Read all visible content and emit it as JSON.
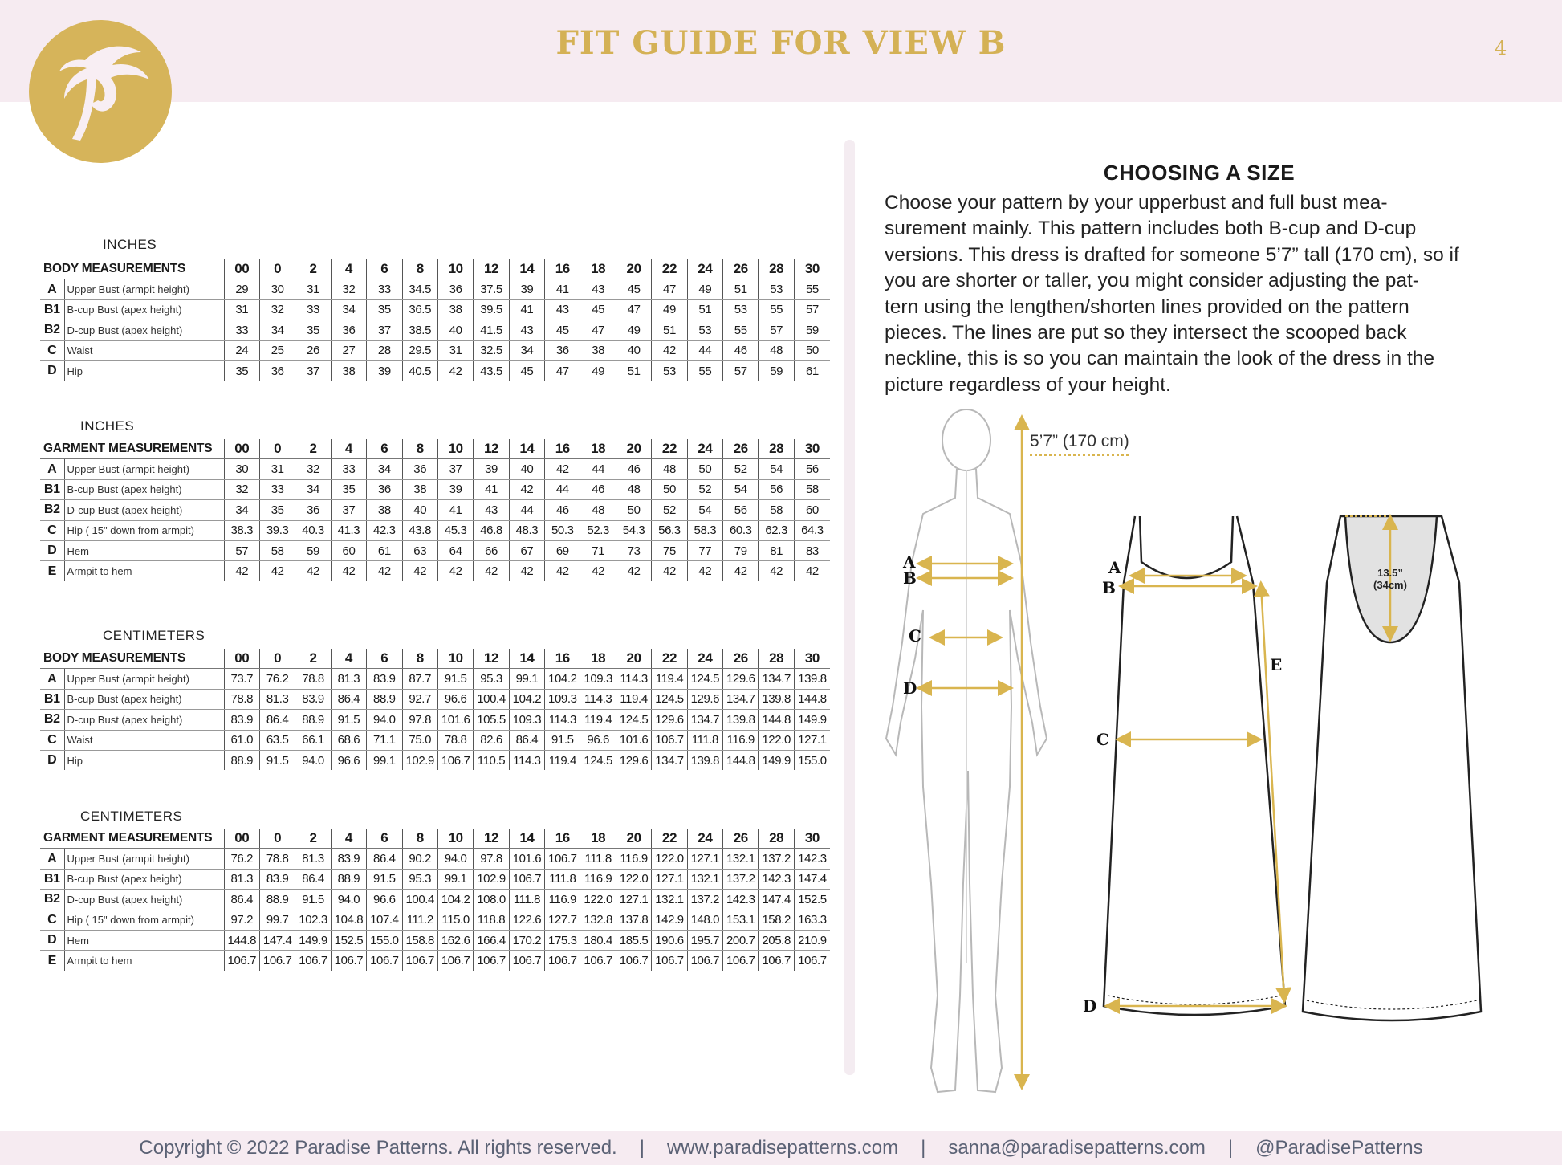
{
  "header": {
    "title": "FIT GUIDE FOR VIEW B",
    "page_number": "4",
    "brand_color": "#d4b155",
    "band_color": "#f6ebf1"
  },
  "logo": {
    "icon": "palm-tree-p-logo",
    "color": "#d6b45a"
  },
  "sizes": [
    "00",
    "0",
    "2",
    "4",
    "6",
    "8",
    "10",
    "12",
    "14",
    "16",
    "18",
    "20",
    "22",
    "24",
    "26",
    "28",
    "30"
  ],
  "tables": [
    {
      "unit": "INCHES",
      "heading": "BODY MEASUREMENTS",
      "rows": [
        {
          "code": "A",
          "label": "Upper Bust (armpit height)",
          "values": [
            "29",
            "30",
            "31",
            "32",
            "33",
            "34.5",
            "36",
            "37.5",
            "39",
            "41",
            "43",
            "45",
            "47",
            "49",
            "51",
            "53",
            "55"
          ]
        },
        {
          "code": "B1",
          "label": "B-cup Bust (apex height)",
          "values": [
            "31",
            "32",
            "33",
            "34",
            "35",
            "36.5",
            "38",
            "39.5",
            "41",
            "43",
            "45",
            "47",
            "49",
            "51",
            "53",
            "55",
            "57"
          ]
        },
        {
          "code": "B2",
          "label": "D-cup Bust (apex height)",
          "values": [
            "33",
            "34",
            "35",
            "36",
            "37",
            "38.5",
            "40",
            "41.5",
            "43",
            "45",
            "47",
            "49",
            "51",
            "53",
            "55",
            "57",
            "59"
          ]
        },
        {
          "code": "C",
          "label": "Waist",
          "values": [
            "24",
            "25",
            "26",
            "27",
            "28",
            "29.5",
            "31",
            "32.5",
            "34",
            "36",
            "38",
            "40",
            "42",
            "44",
            "46",
            "48",
            "50"
          ]
        },
        {
          "code": "D",
          "label": "Hip",
          "values": [
            "35",
            "36",
            "37",
            "38",
            "39",
            "40.5",
            "42",
            "43.5",
            "45",
            "47",
            "49",
            "51",
            "53",
            "55",
            "57",
            "59",
            "61"
          ]
        }
      ]
    },
    {
      "unit": "INCHES",
      "heading": "GARMENT MEASUREMENTS",
      "rows": [
        {
          "code": "A",
          "label": "Upper Bust (armpit height)",
          "values": [
            "30",
            "31",
            "32",
            "33",
            "34",
            "36",
            "37",
            "39",
            "40",
            "42",
            "44",
            "46",
            "48",
            "50",
            "52",
            "54",
            "56"
          ]
        },
        {
          "code": "B1",
          "label": "B-cup Bust (apex height)",
          "values": [
            "32",
            "33",
            "34",
            "35",
            "36",
            "38",
            "39",
            "41",
            "42",
            "44",
            "46",
            "48",
            "50",
            "52",
            "54",
            "56",
            "58"
          ]
        },
        {
          "code": "B2",
          "label": "D-cup Bust (apex height)",
          "values": [
            "34",
            "35",
            "36",
            "37",
            "38",
            "40",
            "41",
            "43",
            "44",
            "46",
            "48",
            "50",
            "52",
            "54",
            "56",
            "58",
            "60"
          ]
        },
        {
          "code": "C",
          "label": "Hip ( 15\" down from armpit)",
          "values": [
            "38.3",
            "39.3",
            "40.3",
            "41.3",
            "42.3",
            "43.8",
            "45.3",
            "46.8",
            "48.3",
            "50.3",
            "52.3",
            "54.3",
            "56.3",
            "58.3",
            "60.3",
            "62.3",
            "64.3"
          ]
        },
        {
          "code": "D",
          "label": "Hem",
          "values": [
            "57",
            "58",
            "59",
            "60",
            "61",
            "63",
            "64",
            "66",
            "67",
            "69",
            "71",
            "73",
            "75",
            "77",
            "79",
            "81",
            "83"
          ]
        },
        {
          "code": "E",
          "label": "Armpit to hem",
          "values": [
            "42",
            "42",
            "42",
            "42",
            "42",
            "42",
            "42",
            "42",
            "42",
            "42",
            "42",
            "42",
            "42",
            "42",
            "42",
            "42",
            "42"
          ]
        }
      ]
    },
    {
      "unit": "CENTIMETERS",
      "heading": "BODY MEASUREMENTS",
      "rows": [
        {
          "code": "A",
          "label": "Upper Bust (armpit height)",
          "values": [
            "73.7",
            "76.2",
            "78.8",
            "81.3",
            "83.9",
            "87.7",
            "91.5",
            "95.3",
            "99.1",
            "104.2",
            "109.3",
            "114.3",
            "119.4",
            "124.5",
            "129.6",
            "134.7",
            "139.8"
          ]
        },
        {
          "code": "B1",
          "label": "B-cup Bust (apex height)",
          "values": [
            "78.8",
            "81.3",
            "83.9",
            "86.4",
            "88.9",
            "92.7",
            "96.6",
            "100.4",
            "104.2",
            "109.3",
            "114.3",
            "119.4",
            "124.5",
            "129.6",
            "134.7",
            "139.8",
            "144.8"
          ]
        },
        {
          "code": "B2",
          "label": "D-cup Bust (apex height)",
          "values": [
            "83.9",
            "86.4",
            "88.9",
            "91.5",
            "94.0",
            "97.8",
            "101.6",
            "105.5",
            "109.3",
            "114.3",
            "119.4",
            "124.5",
            "129.6",
            "134.7",
            "139.8",
            "144.8",
            "149.9"
          ]
        },
        {
          "code": "C",
          "label": "Waist",
          "values": [
            "61.0",
            "63.5",
            "66.1",
            "68.6",
            "71.1",
            "75.0",
            "78.8",
            "82.6",
            "86.4",
            "91.5",
            "96.6",
            "101.6",
            "106.7",
            "111.8",
            "116.9",
            "122.0",
            "127.1"
          ]
        },
        {
          "code": "D",
          "label": "Hip",
          "values": [
            "88.9",
            "91.5",
            "94.0",
            "96.6",
            "99.1",
            "102.9",
            "106.7",
            "110.5",
            "114.3",
            "119.4",
            "124.5",
            "129.6",
            "134.7",
            "139.8",
            "144.8",
            "149.9",
            "155.0"
          ]
        }
      ]
    },
    {
      "unit": "CENTIMETERS",
      "heading": "GARMENT MEASUREMENTS",
      "rows": [
        {
          "code": "A",
          "label": "Upper Bust (armpit height)",
          "values": [
            "76.2",
            "78.8",
            "81.3",
            "83.9",
            "86.4",
            "90.2",
            "94.0",
            "97.8",
            "101.6",
            "106.7",
            "111.8",
            "116.9",
            "122.0",
            "127.1",
            "132.1",
            "137.2",
            "142.3"
          ]
        },
        {
          "code": "B1",
          "label": "B-cup Bust (apex height)",
          "values": [
            "81.3",
            "83.9",
            "86.4",
            "88.9",
            "91.5",
            "95.3",
            "99.1",
            "102.9",
            "106.7",
            "111.8",
            "116.9",
            "122.0",
            "127.1",
            "132.1",
            "137.2",
            "142.3",
            "147.4"
          ]
        },
        {
          "code": "B2",
          "label": "D-cup Bust (apex height)",
          "values": [
            "86.4",
            "88.9",
            "91.5",
            "94.0",
            "96.6",
            "100.4",
            "104.2",
            "108.0",
            "111.8",
            "116.9",
            "122.0",
            "127.1",
            "132.1",
            "137.2",
            "142.3",
            "147.4",
            "152.5"
          ]
        },
        {
          "code": "C",
          "label": "Hip ( 15\" down from armpit)",
          "values": [
            "97.2",
            "99.7",
            "102.3",
            "104.8",
            "107.4",
            "111.2",
            "115.0",
            "118.8",
            "122.6",
            "127.7",
            "132.8",
            "137.8",
            "142.9",
            "148.0",
            "153.1",
            "158.2",
            "163.3"
          ]
        },
        {
          "code": "D",
          "label": "Hem",
          "values": [
            "144.8",
            "147.4",
            "149.9",
            "152.5",
            "155.0",
            "158.8",
            "162.6",
            "166.4",
            "170.2",
            "175.3",
            "180.4",
            "185.5",
            "190.6",
            "195.7",
            "200.7",
            "205.8",
            "210.9"
          ]
        },
        {
          "code": "E",
          "label": "Armpit to hem",
          "values": [
            "106.7",
            "106.7",
            "106.7",
            "106.7",
            "106.7",
            "106.7",
            "106.7",
            "106.7",
            "106.7",
            "106.7",
            "106.7",
            "106.7",
            "106.7",
            "106.7",
            "106.7",
            "106.7",
            "106.7"
          ]
        }
      ]
    }
  ],
  "choosing": {
    "title": "CHOOSING A SIZE",
    "lines": [
      "Choose your pattern by your upperbust and full bust mea-",
      "surement mainly. This pattern includes both B-cup and D-cup",
      "versions. This dress is drafted for someone 5’7” tall (170 cm), so if",
      "you are shorter or taller, you might consider adjusting the pat-",
      "tern using the lengthen/shorten lines provided on the pattern",
      "pieces. The lines are put so they intersect the scooped back",
      "neckline, this is so you can maintain the look of the dress in the",
      "picture regardless of your height."
    ]
  },
  "figure": {
    "height_label": "5’7” (170 cm)",
    "back_label_1": "13.5”",
    "back_label_2": "(34cm)",
    "body_letters": [
      "A",
      "B",
      "C",
      "D"
    ],
    "dress_letters": [
      "A",
      "B",
      "C",
      "D",
      "E"
    ],
    "accent_color": "#d9b54f"
  },
  "footer": {
    "copyright": "Copyright © 2022 Paradise Patterns. All rights reserved.",
    "sep": "|",
    "website": "www.paradisepatterns.com",
    "email": "sanna@paradisepatterns.com",
    "social": "@ParadisePatterns"
  }
}
